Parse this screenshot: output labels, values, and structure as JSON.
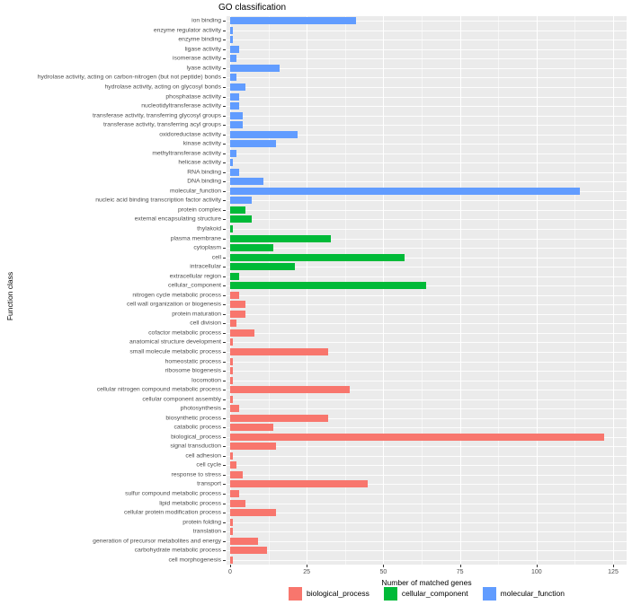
{
  "title": "GO classification",
  "axes": {
    "x_label": "Number of matched genes",
    "y_label": "Function class",
    "x_ticks": [
      0,
      25,
      50,
      75,
      100,
      125
    ]
  },
  "colors": {
    "panel_background": "#EBEBEB",
    "gridline": "#FFFFFF",
    "biological_process": "#F8766D",
    "cellular_component": "#00BA38",
    "molecular_function": "#619CFF"
  },
  "legend": {
    "items": [
      {
        "label": "biological_process",
        "color": "#F8766D"
      },
      {
        "label": "cellular_component",
        "color": "#00BA38"
      },
      {
        "label": "molecular_function",
        "color": "#619CFF"
      }
    ]
  },
  "chart_data": {
    "type": "bar",
    "orientation": "horizontal",
    "title": "GO classification",
    "xlabel": "Number of matched genes",
    "ylabel": "Function class",
    "xlim": [
      0,
      129
    ],
    "x_ticks": [
      0,
      25,
      50,
      75,
      100,
      125
    ],
    "grid": true,
    "legend_position": "bottom",
    "rows": [
      {
        "label": "ion binding",
        "value": 41,
        "group": "molecular_function"
      },
      {
        "label": "enzyme regulator activity",
        "value": 1,
        "group": "molecular_function"
      },
      {
        "label": "enzyme binding",
        "value": 1,
        "group": "molecular_function"
      },
      {
        "label": "ligase activity",
        "value": 3,
        "group": "molecular_function"
      },
      {
        "label": "isomerase activity",
        "value": 2,
        "group": "molecular_function"
      },
      {
        "label": "lyase activity",
        "value": 16,
        "group": "molecular_function"
      },
      {
        "label": "hydrolase activity, acting on carbon-nitrogen (but not peptide) bonds",
        "value": 2,
        "group": "molecular_function"
      },
      {
        "label": "hydrolase activity, acting on glycosyl bonds",
        "value": 5,
        "group": "molecular_function"
      },
      {
        "label": "phosphatase activity",
        "value": 3,
        "group": "molecular_function"
      },
      {
        "label": "nucleotidyltransferase activity",
        "value": 3,
        "group": "molecular_function"
      },
      {
        "label": "transferase activity, transferring glycosyl groups",
        "value": 4,
        "group": "molecular_function"
      },
      {
        "label": "transferase activity, transferring acyl groups",
        "value": 4,
        "group": "molecular_function"
      },
      {
        "label": "oxidoreductase activity",
        "value": 22,
        "group": "molecular_function"
      },
      {
        "label": "kinase activity",
        "value": 15,
        "group": "molecular_function"
      },
      {
        "label": "methyltransferase activity",
        "value": 2,
        "group": "molecular_function"
      },
      {
        "label": "helicase activity",
        "value": 1,
        "group": "molecular_function"
      },
      {
        "label": "RNA binding",
        "value": 3,
        "group": "molecular_function"
      },
      {
        "label": "DNA binding",
        "value": 11,
        "group": "molecular_function"
      },
      {
        "label": "molecular_function",
        "value": 114,
        "group": "molecular_function"
      },
      {
        "label": "nucleic acid binding transcription factor activity",
        "value": 7,
        "group": "molecular_function"
      },
      {
        "label": "protein complex",
        "value": 5,
        "group": "cellular_component"
      },
      {
        "label": "external encapsulating structure",
        "value": 7,
        "group": "cellular_component"
      },
      {
        "label": "thylakoid",
        "value": 1,
        "group": "cellular_component"
      },
      {
        "label": "plasma membrane",
        "value": 33,
        "group": "cellular_component"
      },
      {
        "label": "cytoplasm",
        "value": 14,
        "group": "cellular_component"
      },
      {
        "label": "cell",
        "value": 57,
        "group": "cellular_component"
      },
      {
        "label": "intracellular",
        "value": 21,
        "group": "cellular_component"
      },
      {
        "label": "extracellular region",
        "value": 3,
        "group": "cellular_component"
      },
      {
        "label": "cellular_component",
        "value": 64,
        "group": "cellular_component"
      },
      {
        "label": "nitrogen cycle metabolic process",
        "value": 3,
        "group": "biological_process"
      },
      {
        "label": "cell wall organization or biogenesis",
        "value": 5,
        "group": "biological_process"
      },
      {
        "label": "protein maturation",
        "value": 5,
        "group": "biological_process"
      },
      {
        "label": "cell division",
        "value": 2,
        "group": "biological_process"
      },
      {
        "label": "cofactor metabolic process",
        "value": 8,
        "group": "biological_process"
      },
      {
        "label": "anatomical structure development",
        "value": 1,
        "group": "biological_process"
      },
      {
        "label": "small molecule metabolic process",
        "value": 32,
        "group": "biological_process"
      },
      {
        "label": "homeostatic process",
        "value": 1,
        "group": "biological_process"
      },
      {
        "label": "ribosome biogenesis",
        "value": 1,
        "group": "biological_process"
      },
      {
        "label": "locomotion",
        "value": 1,
        "group": "biological_process"
      },
      {
        "label": "cellular nitrogen compound metabolic process",
        "value": 39,
        "group": "biological_process"
      },
      {
        "label": "cellular component assembly",
        "value": 1,
        "group": "biological_process"
      },
      {
        "label": "photosynthesis",
        "value": 3,
        "group": "biological_process"
      },
      {
        "label": "biosynthetic process",
        "value": 32,
        "group": "biological_process"
      },
      {
        "label": "catabolic process",
        "value": 14,
        "group": "biological_process"
      },
      {
        "label": "biological_process",
        "value": 122,
        "group": "biological_process"
      },
      {
        "label": "signal transduction",
        "value": 15,
        "group": "biological_process"
      },
      {
        "label": "cell adhesion",
        "value": 1,
        "group": "biological_process"
      },
      {
        "label": "cell cycle",
        "value": 2,
        "group": "biological_process"
      },
      {
        "label": "response to stress",
        "value": 4,
        "group": "biological_process"
      },
      {
        "label": "transport",
        "value": 45,
        "group": "biological_process"
      },
      {
        "label": "sulfur compound metabolic process",
        "value": 3,
        "group": "biological_process"
      },
      {
        "label": "lipid metabolic process",
        "value": 5,
        "group": "biological_process"
      },
      {
        "label": "cellular protein modification process",
        "value": 15,
        "group": "biological_process"
      },
      {
        "label": "protein folding",
        "value": 1,
        "group": "biological_process"
      },
      {
        "label": "translation",
        "value": 1,
        "group": "biological_process"
      },
      {
        "label": "generation of precursor metabolites and energy",
        "value": 9,
        "group": "biological_process"
      },
      {
        "label": "carbohydrate metabolic process",
        "value": 12,
        "group": "biological_process"
      },
      {
        "label": "cell morphogenesis",
        "value": 1,
        "group": "biological_process"
      }
    ]
  }
}
